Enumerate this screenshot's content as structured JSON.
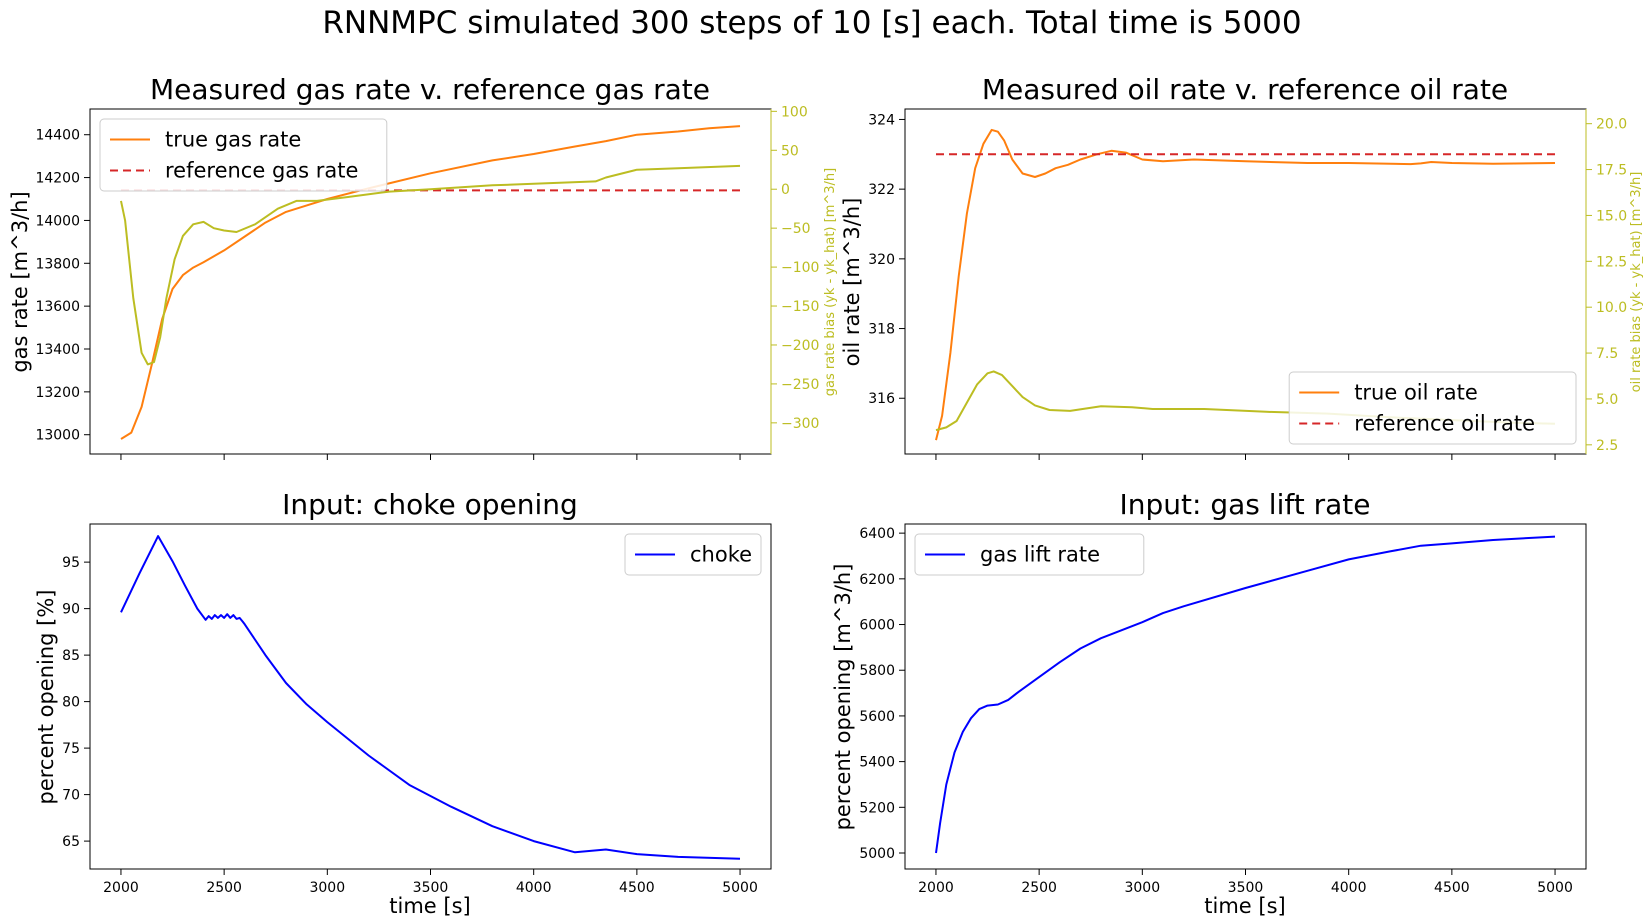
{
  "figure": {
    "suptitle": "RNNMPC simulated 300 steps of 10 [s] each. Total time is 5000"
  },
  "colors": {
    "true_rate": "#ff7f0e",
    "reference": "#d62728",
    "bias": "#bcbd22",
    "input": "#0000ff",
    "axes": "#000000"
  },
  "chart_data": [
    {
      "id": "gas",
      "type": "line",
      "title": "Measured gas rate v. reference gas rate",
      "xlabel": "",
      "ylabel": "gas rate [m^3/h]",
      "y2label": "gas rate bias (yk - yk_hat) [m^3/h]",
      "xlim": [
        1850,
        5150
      ],
      "ylim": [
        12910,
        14520
      ],
      "y2lim": [
        -340,
        103
      ],
      "xticks": [
        2000,
        2500,
        3000,
        3500,
        4000,
        4500,
        5000
      ],
      "xtick_labels_visible": false,
      "yticks": [
        13000,
        13200,
        13400,
        13600,
        13800,
        14000,
        14200,
        14400
      ],
      "y2ticks": [
        -300,
        -250,
        -200,
        -150,
        -100,
        -50,
        0,
        50,
        100
      ],
      "legend": {
        "position": "upper-left",
        "entries": [
          "true gas rate",
          "reference gas rate"
        ]
      },
      "series": [
        {
          "name": "true gas rate",
          "axis": "y",
          "style": "solid",
          "color": "#ff7f0e",
          "x": [
            2000,
            2050,
            2100,
            2150,
            2200,
            2250,
            2300,
            2350,
            2400,
            2500,
            2600,
            2700,
            2800,
            2900,
            3000,
            3200,
            3500,
            3800,
            4000,
            4200,
            4350,
            4500,
            4700,
            4850,
            5000
          ],
          "y": [
            12980,
            13010,
            13130,
            13330,
            13540,
            13680,
            13745,
            13780,
            13805,
            13860,
            13925,
            13990,
            14040,
            14070,
            14100,
            14150,
            14220,
            14280,
            14310,
            14345,
            14370,
            14400,
            14415,
            14430,
            14440
          ]
        },
        {
          "name": "reference gas rate",
          "axis": "y",
          "style": "dashed",
          "color": "#d62728",
          "x": [
            2000,
            5000
          ],
          "y": [
            14140,
            14140
          ]
        },
        {
          "name": "",
          "axis": "y2",
          "style": "solid",
          "color": "#bcbd22",
          "x": [
            2000,
            2020,
            2060,
            2100,
            2130,
            2160,
            2190,
            2220,
            2260,
            2300,
            2350,
            2400,
            2450,
            2500,
            2560,
            2650,
            2760,
            2850,
            2950,
            3100,
            3300,
            3500,
            3800,
            4000,
            4300,
            4350,
            4500,
            4700,
            5000
          ],
          "y": [
            -15,
            -40,
            -140,
            -210,
            -225,
            -222,
            -190,
            -140,
            -90,
            -60,
            -45,
            -42,
            -50,
            -53,
            -55,
            -45,
            -25,
            -15,
            -15,
            -10,
            -3,
            0,
            5,
            7,
            10,
            15,
            25,
            27,
            30
          ]
        }
      ]
    },
    {
      "id": "oil",
      "type": "line",
      "title": "Measured oil rate v. reference oil rate",
      "xlabel": "",
      "ylabel": "oil rate [m^3/h]",
      "y2label": "oil rate bias (yk - yk_hat) [m^3/h]",
      "xlim": [
        1850,
        5150
      ],
      "ylim": [
        314.4,
        324.3
      ],
      "y2lim": [
        2.0,
        20.8
      ],
      "xticks": [
        2000,
        2500,
        3000,
        3500,
        4000,
        4500,
        5000
      ],
      "xtick_labels_visible": false,
      "yticks": [
        316,
        318,
        320,
        322,
        324
      ],
      "y2ticks": [
        2.5,
        5.0,
        7.5,
        10.0,
        12.5,
        15.0,
        17.5,
        20.0
      ],
      "legend": {
        "position": "lower-right",
        "entries": [
          "true oil rate",
          "reference oil rate"
        ]
      },
      "series": [
        {
          "name": "true oil rate",
          "axis": "y",
          "style": "solid",
          "color": "#ff7f0e",
          "x": [
            2000,
            2030,
            2070,
            2110,
            2150,
            2190,
            2230,
            2270,
            2300,
            2330,
            2370,
            2420,
            2480,
            2530,
            2580,
            2640,
            2700,
            2780,
            2850,
            2920,
            3000,
            3100,
            3250,
            3500,
            3800,
            4000,
            4300,
            4350,
            4400,
            4500,
            4700,
            5000
          ],
          "y": [
            314.8,
            315.5,
            317.3,
            319.5,
            321.3,
            322.6,
            323.3,
            323.7,
            323.65,
            323.4,
            322.85,
            322.45,
            322.35,
            322.45,
            322.6,
            322.7,
            322.85,
            323.0,
            323.1,
            323.05,
            322.85,
            322.8,
            322.85,
            322.8,
            322.75,
            322.75,
            322.72,
            322.74,
            322.78,
            322.75,
            322.73,
            322.75
          ]
        },
        {
          "name": "reference oil rate",
          "axis": "y",
          "style": "dashed",
          "color": "#d62728",
          "x": [
            2000,
            5000
          ],
          "y": [
            323.0,
            323.0
          ]
        },
        {
          "name": "",
          "axis": "y2",
          "style": "solid",
          "color": "#bcbd22",
          "x": [
            2000,
            2050,
            2100,
            2150,
            2200,
            2250,
            2280,
            2320,
            2370,
            2420,
            2480,
            2550,
            2650,
            2800,
            2950,
            3050,
            3300,
            3600,
            3900,
            4200,
            4400,
            4600,
            4800,
            5000
          ],
          "y": [
            3.3,
            3.45,
            3.8,
            4.8,
            5.8,
            6.4,
            6.5,
            6.3,
            5.7,
            5.1,
            4.65,
            4.4,
            4.35,
            4.6,
            4.55,
            4.45,
            4.45,
            4.3,
            4.2,
            4.0,
            3.9,
            3.8,
            3.7,
            3.65
          ]
        }
      ]
    },
    {
      "id": "choke",
      "type": "line",
      "title": "Input: choke opening",
      "xlabel": "time [s]",
      "ylabel": "percent opening [%]",
      "xlim": [
        1850,
        5150
      ],
      "ylim": [
        62.0,
        99.1
      ],
      "xticks": [
        2000,
        2500,
        3000,
        3500,
        4000,
        4500,
        5000
      ],
      "xtick_labels_visible": true,
      "yticks": [
        65,
        70,
        75,
        80,
        85,
        90,
        95
      ],
      "legend": {
        "position": "upper-right",
        "entries": [
          "choke"
        ]
      },
      "series": [
        {
          "name": "choke",
          "axis": "y",
          "style": "solid",
          "color": "#0000ff",
          "x": [
            2000,
            2090,
            2180,
            2250,
            2310,
            2370,
            2410,
            2425,
            2440,
            2455,
            2470,
            2485,
            2500,
            2515,
            2530,
            2545,
            2560,
            2575,
            2590,
            2600,
            2700,
            2800,
            2900,
            3000,
            3200,
            3400,
            3600,
            3800,
            4000,
            4200,
            4350,
            4500,
            4700,
            5000
          ],
          "y": [
            89.6,
            93.8,
            97.8,
            95.1,
            92.5,
            90.0,
            88.8,
            89.2,
            88.9,
            89.3,
            89.0,
            89.3,
            89.0,
            89.4,
            89.0,
            89.3,
            88.9,
            89.0,
            88.6,
            88.3,
            85.0,
            82.0,
            79.7,
            77.8,
            74.2,
            71.0,
            68.7,
            66.6,
            65.0,
            63.8,
            64.1,
            63.6,
            63.3,
            63.1
          ]
        }
      ]
    },
    {
      "id": "gaslift",
      "type": "line",
      "title": "Input: gas lift rate",
      "xlabel": "time [s]",
      "ylabel": "percent opening [m^3/h]",
      "xlim": [
        1850,
        5150
      ],
      "ylim": [
        4930,
        6440
      ],
      "xticks": [
        2000,
        2500,
        3000,
        3500,
        4000,
        4500,
        5000
      ],
      "xtick_labels_visible": true,
      "yticks": [
        5000,
        5200,
        5400,
        5600,
        5800,
        6000,
        6200,
        6400
      ],
      "legend": {
        "position": "upper-left",
        "entries": [
          "gas lift rate"
        ]
      },
      "series": [
        {
          "name": "gas lift rate",
          "axis": "y",
          "style": "solid",
          "color": "#0000ff",
          "x": [
            2000,
            2020,
            2050,
            2090,
            2130,
            2170,
            2210,
            2250,
            2300,
            2350,
            2400,
            2500,
            2600,
            2700,
            2800,
            2900,
            3000,
            3100,
            3200,
            3500,
            3800,
            4000,
            4200,
            4350,
            4500,
            4700,
            5000
          ],
          "y": [
            5000,
            5130,
            5300,
            5440,
            5530,
            5590,
            5630,
            5645,
            5650,
            5670,
            5705,
            5770,
            5835,
            5895,
            5940,
            5975,
            6010,
            6050,
            6080,
            6160,
            6235,
            6285,
            6320,
            6345,
            6355,
            6370,
            6385
          ]
        }
      ]
    }
  ]
}
